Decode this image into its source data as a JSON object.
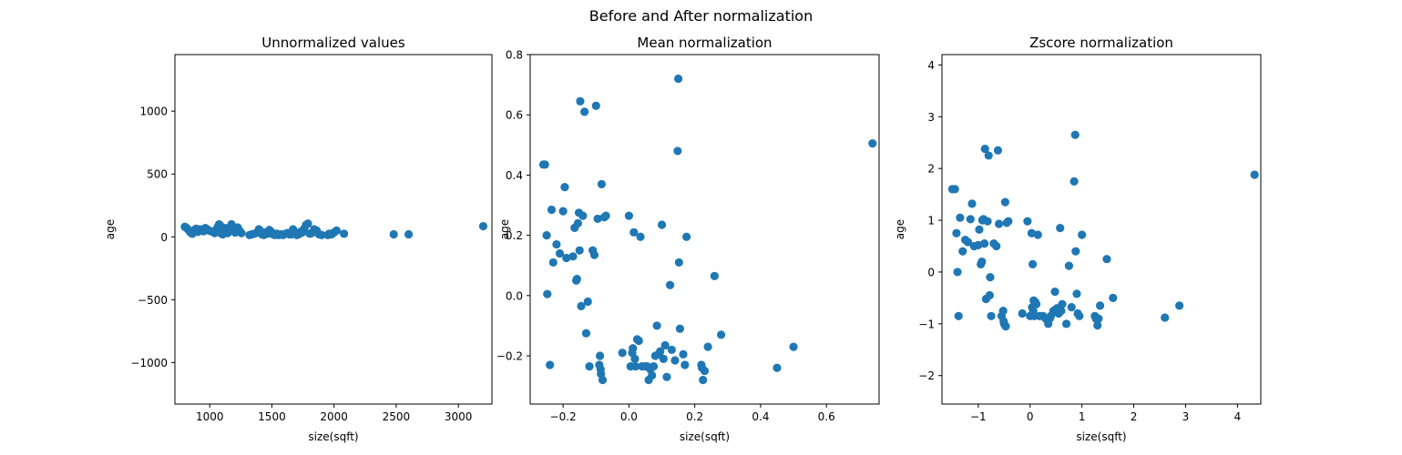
{
  "figure": {
    "suptitle": "Before and After normalization"
  },
  "chart_data": [
    {
      "type": "scatter",
      "title": "Unnormalized values",
      "xlabel": "size(sqft)",
      "ylabel": "age",
      "xlim": [
        720,
        3270
      ],
      "ylim": [
        -1330,
        1450
      ],
      "xticks": [
        1000,
        1500,
        2000,
        2500,
        3000
      ],
      "yticks": [
        -1000,
        -500,
        0,
        500,
        1000
      ],
      "ytick_labels": [
        "−1000",
        "−500",
        "0",
        "500",
        "1000"
      ],
      "color": "#1f77b4",
      "points": [
        [
          800,
          80
        ],
        [
          815,
          70
        ],
        [
          830,
          55
        ],
        [
          845,
          35
        ],
        [
          860,
          25
        ],
        [
          875,
          50
        ],
        [
          890,
          65
        ],
        [
          905,
          40
        ],
        [
          920,
          60
        ],
        [
          935,
          55
        ],
        [
          950,
          45
        ],
        [
          965,
          70
        ],
        [
          980,
          60
        ],
        [
          995,
          50
        ],
        [
          1010,
          45
        ],
        [
          1025,
          40
        ],
        [
          1040,
          30
        ],
        [
          1055,
          60
        ],
        [
          1065,
          80
        ],
        [
          1075,
          100
        ],
        [
          1085,
          90
        ],
        [
          1095,
          25
        ],
        [
          1105,
          20
        ],
        [
          1115,
          65
        ],
        [
          1125,
          70
        ],
        [
          1135,
          50
        ],
        [
          1145,
          30
        ],
        [
          1155,
          45
        ],
        [
          1165,
          60
        ],
        [
          1175,
          100
        ],
        [
          1185,
          80
        ],
        [
          1195,
          55
        ],
        [
          1205,
          35
        ],
        [
          1215,
          40
        ],
        [
          1225,
          75
        ],
        [
          1240,
          50
        ],
        [
          1255,
          30
        ],
        [
          1320,
          15
        ],
        [
          1340,
          20
        ],
        [
          1360,
          25
        ],
        [
          1380,
          35
        ],
        [
          1395,
          60
        ],
        [
          1405,
          50
        ],
        [
          1420,
          20
        ],
        [
          1435,
          15
        ],
        [
          1450,
          35
        ],
        [
          1465,
          25
        ],
        [
          1480,
          55
        ],
        [
          1495,
          40
        ],
        [
          1510,
          20
        ],
        [
          1525,
          15
        ],
        [
          1540,
          25
        ],
        [
          1555,
          15
        ],
        [
          1575,
          20
        ],
        [
          1590,
          15
        ],
        [
          1610,
          25
        ],
        [
          1625,
          30
        ],
        [
          1640,
          20
        ],
        [
          1655,
          20
        ],
        [
          1670,
          60
        ],
        [
          1685,
          25
        ],
        [
          1700,
          15
        ],
        [
          1715,
          20
        ],
        [
          1730,
          40
        ],
        [
          1745,
          35
        ],
        [
          1760,
          65
        ],
        [
          1775,
          95
        ],
        [
          1790,
          105
        ],
        [
          1805,
          25
        ],
        [
          1820,
          30
        ],
        [
          1840,
          60
        ],
        [
          1860,
          50
        ],
        [
          1880,
          20
        ],
        [
          1900,
          15
        ],
        [
          1950,
          15
        ],
        [
          1960,
          25
        ],
        [
          1980,
          20
        ],
        [
          2000,
          35
        ],
        [
          2020,
          50
        ],
        [
          2080,
          25
        ],
        [
          2480,
          20
        ],
        [
          2600,
          20
        ],
        [
          3200,
          85
        ]
      ]
    },
    {
      "type": "scatter",
      "title": "Mean normalization",
      "xlabel": "size(sqft)",
      "ylabel": "age",
      "xlim": [
        -0.3,
        0.76
      ],
      "ylim": [
        -0.36,
        0.8
      ],
      "xticks": [
        -0.2,
        0.0,
        0.2,
        0.4,
        0.6
      ],
      "yticks": [
        -0.2,
        0.0,
        0.2,
        0.4,
        0.6,
        0.8
      ],
      "xtick_labels": [
        "−0.2",
        "0.0",
        "0.2",
        "0.4",
        "0.6"
      ],
      "ytick_labels": [
        "−0.2",
        "0.0",
        "0.2",
        "0.4",
        "0.6",
        "0.8"
      ],
      "color": "#1f77b4",
      "points": [
        [
          -0.26,
          0.435
        ],
        [
          -0.255,
          0.435
        ],
        [
          -0.25,
          0.2
        ],
        [
          -0.248,
          0.005
        ],
        [
          -0.24,
          -0.23
        ],
        [
          -0.235,
          0.285
        ],
        [
          -0.23,
          0.11
        ],
        [
          -0.22,
          0.17
        ],
        [
          -0.21,
          0.14
        ],
        [
          -0.2,
          0.28
        ],
        [
          -0.195,
          0.36
        ],
        [
          -0.19,
          0.125
        ],
        [
          -0.17,
          0.13
        ],
        [
          -0.165,
          0.225
        ],
        [
          -0.16,
          0.05
        ],
        [
          -0.158,
          0.055
        ],
        [
          -0.155,
          0.24
        ],
        [
          -0.152,
          0.275
        ],
        [
          -0.15,
          0.15
        ],
        [
          -0.148,
          0.645
        ],
        [
          -0.145,
          -0.035
        ],
        [
          -0.14,
          0.265
        ],
        [
          -0.135,
          0.61
        ],
        [
          -0.13,
          -0.125
        ],
        [
          -0.125,
          -0.02
        ],
        [
          -0.12,
          -0.235
        ],
        [
          -0.11,
          0.15
        ],
        [
          -0.105,
          0.135
        ],
        [
          -0.1,
          0.63
        ],
        [
          -0.095,
          0.255
        ],
        [
          -0.09,
          -0.23
        ],
        [
          -0.088,
          -0.2
        ],
        [
          -0.086,
          -0.245
        ],
        [
          -0.085,
          -0.26
        ],
        [
          -0.083,
          0.37
        ],
        [
          -0.08,
          -0.28
        ],
        [
          -0.075,
          0.26
        ],
        [
          -0.07,
          0.265
        ],
        [
          -0.02,
          -0.19
        ],
        [
          0.0,
          0.265
        ],
        [
          0.005,
          -0.235
        ],
        [
          0.01,
          -0.19
        ],
        [
          0.012,
          -0.175
        ],
        [
          0.015,
          0.21
        ],
        [
          0.018,
          -0.21
        ],
        [
          0.02,
          -0.235
        ],
        [
          0.025,
          -0.145
        ],
        [
          0.03,
          -0.15
        ],
        [
          0.035,
          0.195
        ],
        [
          0.04,
          -0.235
        ],
        [
          0.05,
          -0.235
        ],
        [
          0.055,
          -0.235
        ],
        [
          0.06,
          -0.28
        ],
        [
          0.065,
          -0.245
        ],
        [
          0.07,
          -0.265
        ],
        [
          0.075,
          -0.235
        ],
        [
          0.08,
          -0.2
        ],
        [
          0.085,
          -0.1
        ],
        [
          0.09,
          -0.195
        ],
        [
          0.095,
          -0.185
        ],
        [
          0.1,
          0.235
        ],
        [
          0.105,
          -0.21
        ],
        [
          0.11,
          -0.165
        ],
        [
          0.115,
          -0.27
        ],
        [
          0.125,
          0.035
        ],
        [
          0.13,
          -0.18
        ],
        [
          0.14,
          -0.215
        ],
        [
          0.148,
          0.48
        ],
        [
          0.15,
          0.72
        ],
        [
          0.152,
          0.11
        ],
        [
          0.155,
          -0.11
        ],
        [
          0.165,
          -0.195
        ],
        [
          0.17,
          -0.23
        ],
        [
          0.175,
          0.195
        ],
        [
          0.22,
          -0.23
        ],
        [
          0.222,
          -0.24
        ],
        [
          0.225,
          -0.28
        ],
        [
          0.23,
          -0.25
        ],
        [
          0.24,
          -0.17
        ],
        [
          0.26,
          0.065
        ],
        [
          0.28,
          -0.13
        ],
        [
          0.45,
          -0.24
        ],
        [
          0.5,
          -0.17
        ],
        [
          0.74,
          0.505
        ]
      ]
    },
    {
      "type": "scatter",
      "title": "Zscore normalization",
      "xlabel": "size(sqft)",
      "ylabel": "age",
      "xlim": [
        -1.7,
        4.45
      ],
      "ylim": [
        -2.55,
        4.2
      ],
      "xticks": [
        -1,
        0,
        1,
        2,
        3,
        4
      ],
      "yticks": [
        -2,
        -1,
        0,
        1,
        2,
        3,
        4
      ],
      "xtick_labels": [
        "−1",
        "0",
        "1",
        "2",
        "3",
        "4"
      ],
      "ytick_labels": [
        "−2",
        "−1",
        "0",
        "1",
        "2",
        "3",
        "4"
      ],
      "color": "#1f77b4",
      "points": [
        [
          -1.5,
          1.6
        ],
        [
          -1.45,
          1.6
        ],
        [
          -1.42,
          0.75
        ],
        [
          -1.4,
          0.0
        ],
        [
          -1.38,
          -0.85
        ],
        [
          -1.35,
          1.05
        ],
        [
          -1.3,
          0.4
        ],
        [
          -1.25,
          0.62
        ],
        [
          -1.2,
          0.58
        ],
        [
          -1.15,
          1.02
        ],
        [
          -1.12,
          1.32
        ],
        [
          -1.08,
          0.5
        ],
        [
          -1.0,
          0.52
        ],
        [
          -0.98,
          0.82
        ],
        [
          -0.95,
          0.15
        ],
        [
          -0.93,
          0.2
        ],
        [
          -0.92,
          1.0
        ],
        [
          -0.9,
          1.02
        ],
        [
          -0.88,
          0.55
        ],
        [
          -0.87,
          2.38
        ],
        [
          -0.85,
          -0.52
        ],
        [
          -0.82,
          0.98
        ],
        [
          -0.8,
          2.25
        ],
        [
          -0.78,
          -0.45
        ],
        [
          -0.77,
          -0.1
        ],
        [
          -0.75,
          -0.85
        ],
        [
          -0.7,
          0.55
        ],
        [
          -0.65,
          0.5
        ],
        [
          -0.62,
          2.35
        ],
        [
          -0.6,
          0.93
        ],
        [
          -0.55,
          -0.85
        ],
        [
          -0.52,
          -0.75
        ],
        [
          -0.51,
          -0.95
        ],
        [
          -0.5,
          -1.0
        ],
        [
          -0.48,
          1.35
        ],
        [
          -0.47,
          -1.05
        ],
        [
          -0.45,
          0.95
        ],
        [
          -0.42,
          0.98
        ],
        [
          -0.15,
          -0.8
        ],
        [
          -0.05,
          0.98
        ],
        [
          0.0,
          -0.85
        ],
        [
          0.03,
          0.75
        ],
        [
          0.04,
          -0.68
        ],
        [
          0.05,
          0.15
        ],
        [
          0.06,
          -0.75
        ],
        [
          0.07,
          -0.55
        ],
        [
          0.08,
          -0.85
        ],
        [
          0.1,
          -0.58
        ],
        [
          0.12,
          -0.62
        ],
        [
          0.15,
          0.72
        ],
        [
          0.18,
          -0.85
        ],
        [
          0.25,
          -0.85
        ],
        [
          0.3,
          -0.9
        ],
        [
          0.35,
          -1.0
        ],
        [
          0.38,
          -0.9
        ],
        [
          0.4,
          -0.85
        ],
        [
          0.45,
          -0.75
        ],
        [
          0.48,
          -0.38
        ],
        [
          0.5,
          -0.72
        ],
        [
          0.52,
          -0.7
        ],
        [
          0.55,
          -0.8
        ],
        [
          0.58,
          0.85
        ],
        [
          0.6,
          -0.75
        ],
        [
          0.62,
          -0.62
        ],
        [
          0.7,
          -1.0
        ],
        [
          0.75,
          0.12
        ],
        [
          0.8,
          -0.68
        ],
        [
          0.85,
          1.75
        ],
        [
          0.87,
          2.65
        ],
        [
          0.88,
          0.4
        ],
        [
          0.9,
          -0.42
        ],
        [
          0.92,
          -0.8
        ],
        [
          0.95,
          -0.85
        ],
        [
          1.0,
          0.72
        ],
        [
          1.25,
          -0.85
        ],
        [
          1.27,
          -0.9
        ],
        [
          1.3,
          -1.03
        ],
        [
          1.32,
          -0.9
        ],
        [
          1.35,
          -0.65
        ],
        [
          1.48,
          0.25
        ],
        [
          1.6,
          -0.5
        ],
        [
          2.6,
          -0.88
        ],
        [
          2.88,
          -0.65
        ],
        [
          4.33,
          1.88
        ]
      ]
    }
  ]
}
